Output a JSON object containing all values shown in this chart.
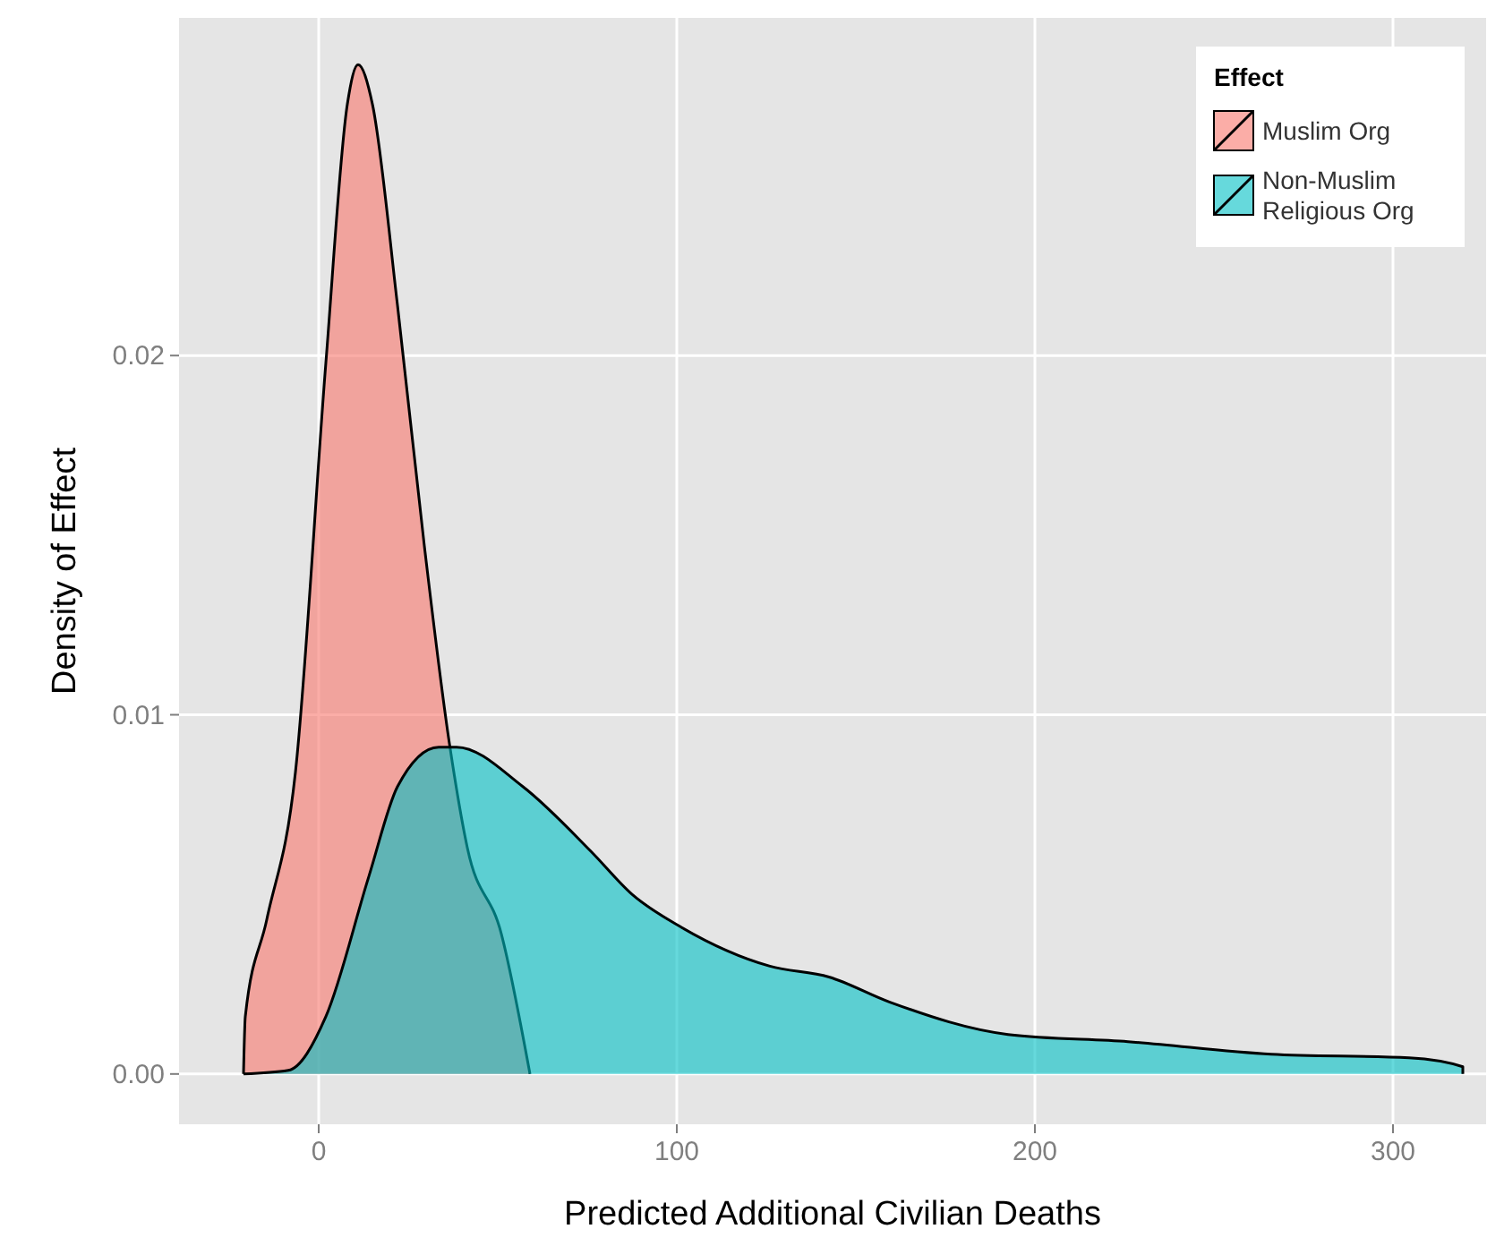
{
  "chart_data": {
    "type": "area",
    "xlabel": "Predicted Additional Civilian Deaths",
    "ylabel": "Density of Effect",
    "legend_title": "Effect",
    "xlim": [
      -39,
      326
    ],
    "ylim": [
      -0.0014,
      0.0294
    ],
    "xticks": [
      0,
      100,
      200,
      300
    ],
    "yticks": [
      {
        "value": 0,
        "label": "0.00"
      },
      {
        "value": 0.01,
        "label": "0.01"
      },
      {
        "value": 0.02,
        "label": "0.02"
      }
    ],
    "grid": true,
    "legend": "top right",
    "series": [
      {
        "name": "Muslim Org",
        "color": "#f8766d",
        "x": [
          -21,
          -21,
          -20.5,
          -14.5,
          -6.5,
          2,
          8,
          11,
          15,
          22,
          29.5,
          36.5,
          41.5,
          51,
          59
        ],
        "values": [
          0,
          0,
          0.0016,
          0.0043,
          0.0084,
          0.0198,
          0.027,
          0.0281,
          0.027,
          0.0214,
          0.0147,
          0.0092,
          0.0063,
          0.0039,
          0
        ]
      },
      {
        "name": "Non-Muslim Religious Org",
        "color": "#00bfc4",
        "x": [
          -21,
          -8.5,
          2,
          14,
          22,
          33.5,
          38.5,
          57,
          76,
          87.5,
          101,
          126,
          142.5,
          159.5,
          192.5,
          226,
          266,
          304.5,
          319.5,
          319.5
        ],
        "values": [
          0,
          0.0001,
          0.0016,
          0.0055,
          0.008,
          0.0091,
          0.0091,
          0.008,
          0.0062,
          0.005,
          0.0041,
          0.003,
          0.0027,
          0.002,
          0.0011,
          0.0009,
          0.00055,
          0.00045,
          0.0002,
          0
        ]
      }
    ]
  }
}
